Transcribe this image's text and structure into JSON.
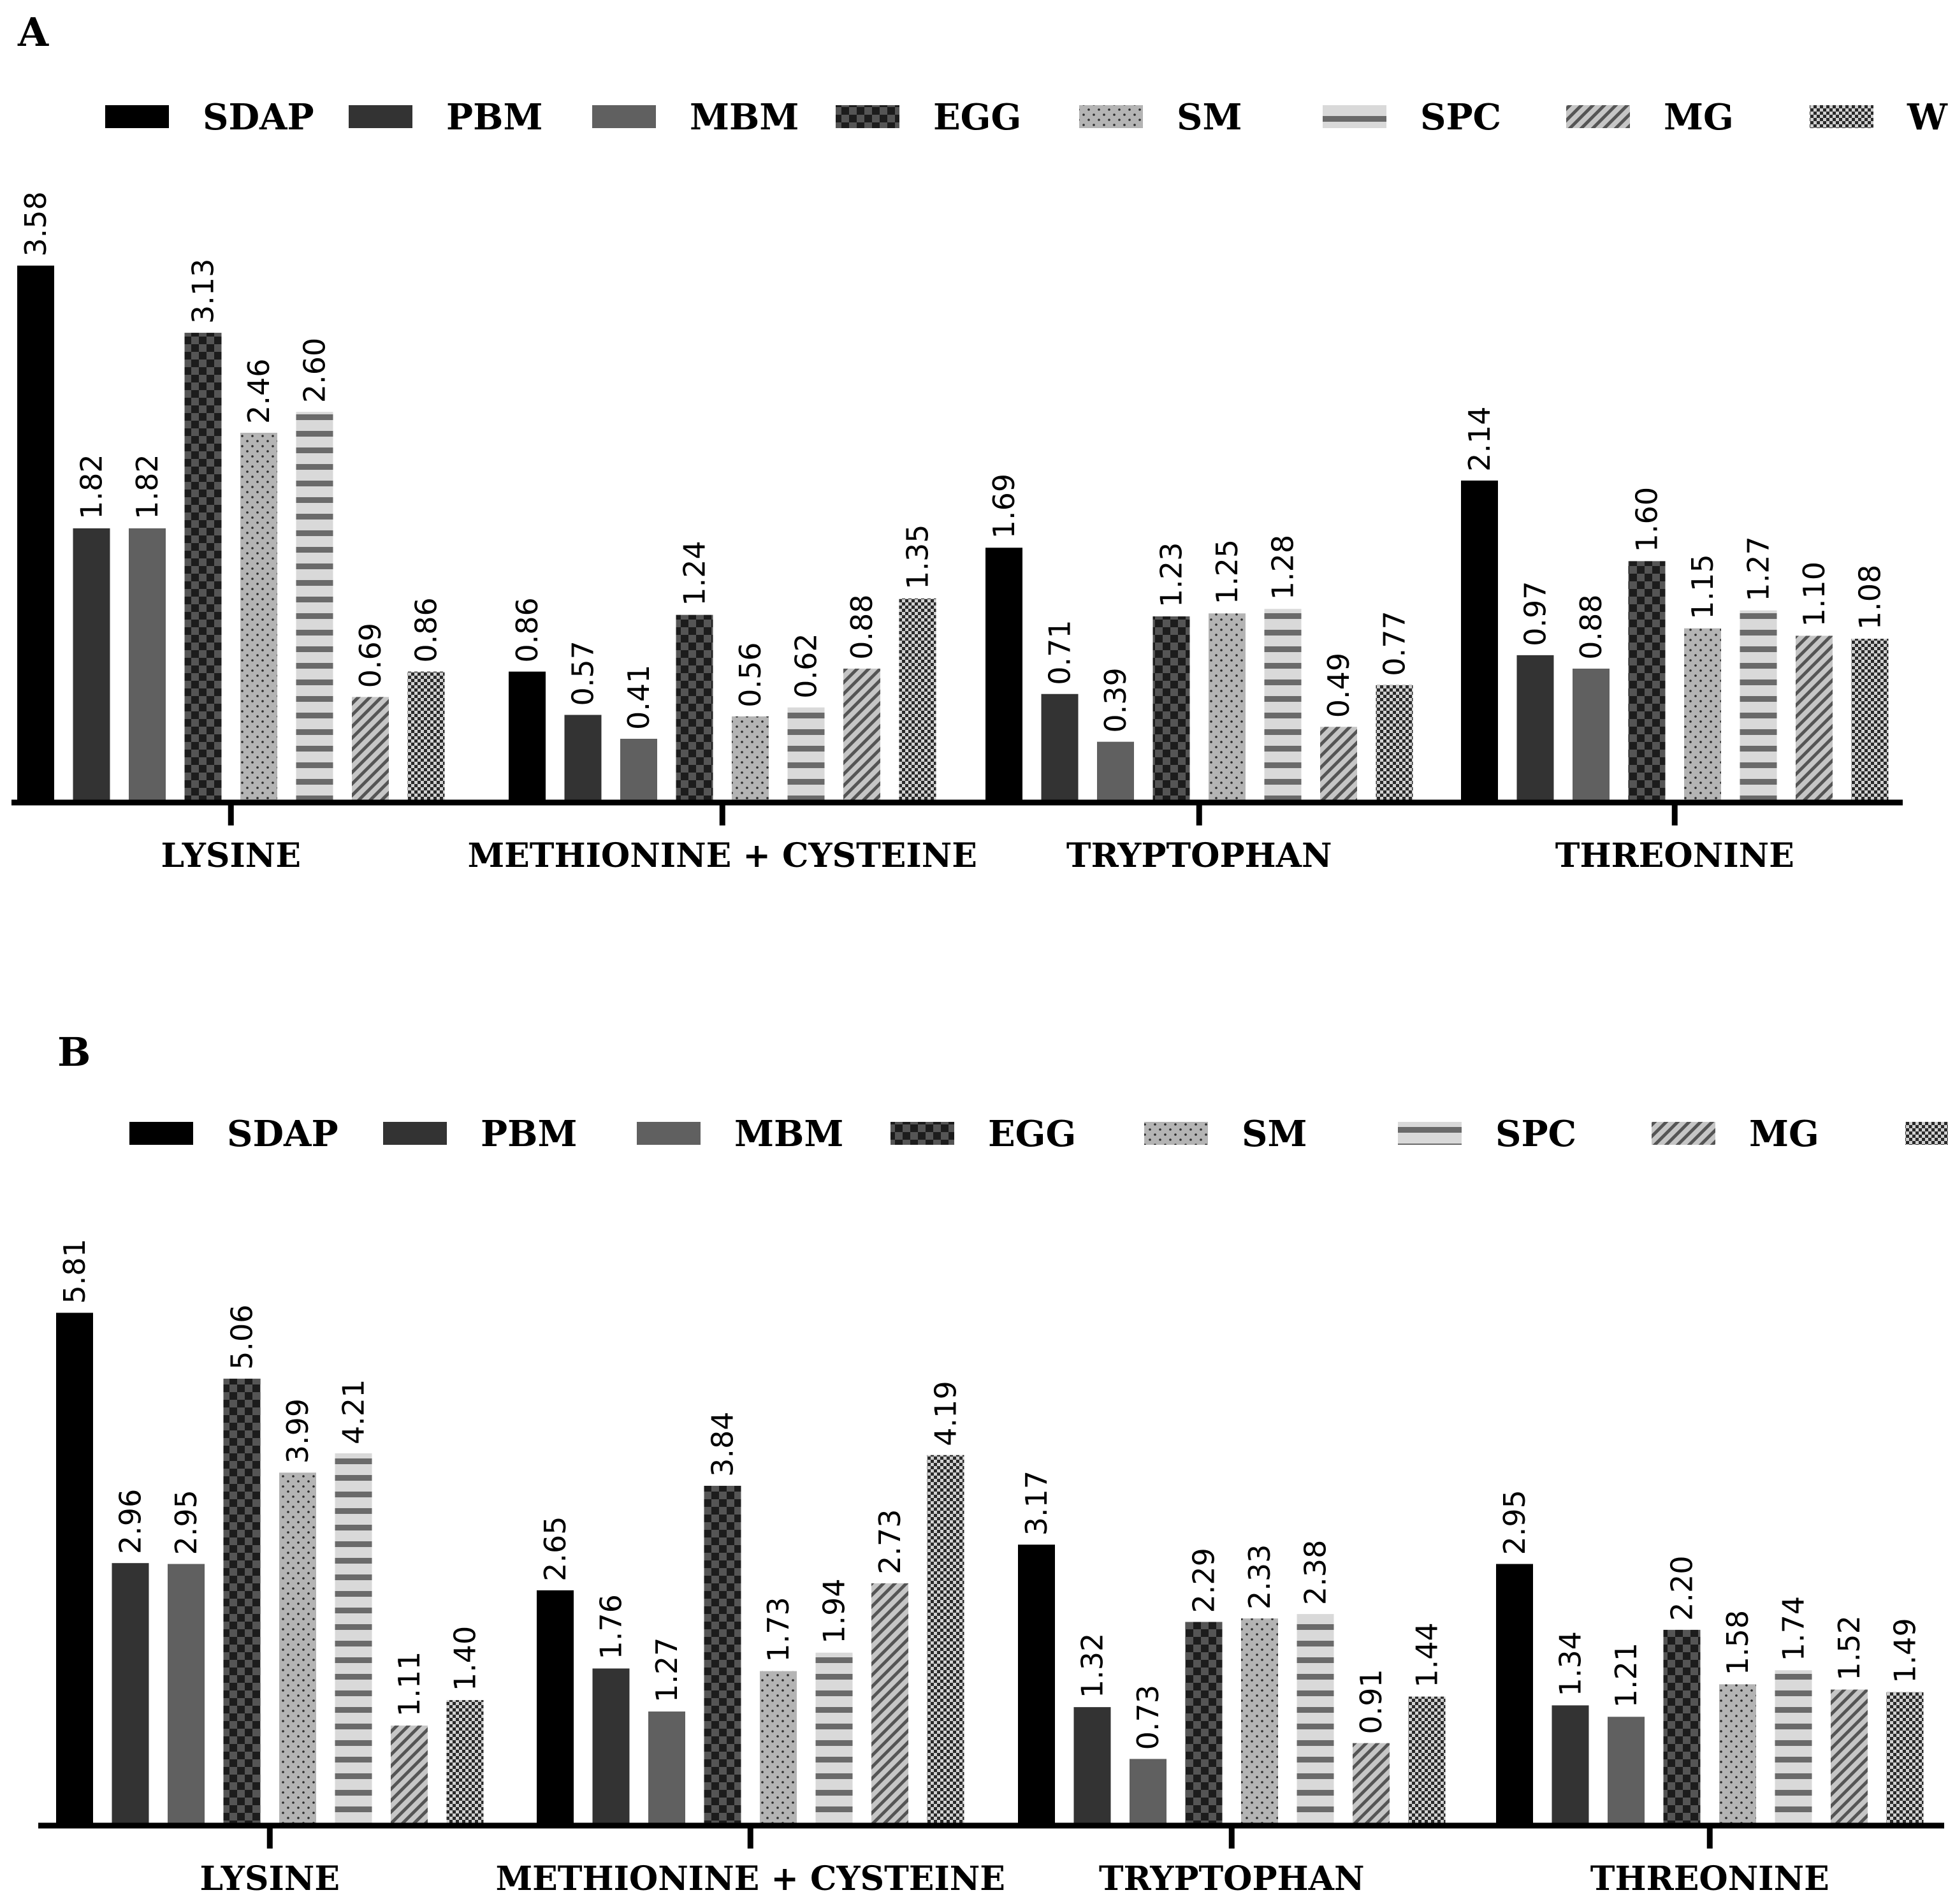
{
  "chart_data": [
    {
      "type": "bar",
      "panel": "A",
      "title": "",
      "xlabel": "",
      "ylabel": "",
      "legend_position": "top",
      "categories": [
        "LYSINE",
        "METHIONINE + CYSTEINE",
        "TRYPTOPHAN",
        "THREONINE"
      ],
      "series": [
        {
          "name": "SDAP",
          "values": [
            3.58,
            0.86,
            1.69,
            2.14
          ]
        },
        {
          "name": "PBM",
          "values": [
            1.82,
            0.57,
            0.71,
            0.97
          ]
        },
        {
          "name": "MBM",
          "values": [
            1.82,
            0.41,
            0.39,
            0.88
          ]
        },
        {
          "name": "EGG",
          "values": [
            3.13,
            1.24,
            1.23,
            1.6
          ]
        },
        {
          "name": "SM",
          "values": [
            2.46,
            0.56,
            1.25,
            1.15
          ]
        },
        {
          "name": "SPC",
          "values": [
            2.6,
            0.62,
            1.28,
            1.27
          ]
        },
        {
          "name": "MG",
          "values": [
            0.69,
            0.88,
            0.49,
            1.1
          ]
        },
        {
          "name": "WG",
          "values": [
            0.86,
            1.35,
            0.77,
            1.08
          ]
        }
      ],
      "value_labels": [
        [
          "3.58",
          "0.86",
          "1.69",
          "2.14"
        ],
        [
          "1.82",
          "0.57",
          "0.71",
          "0.97"
        ],
        [
          "1.82",
          "0.41",
          "0.39",
          "0.88"
        ],
        [
          "3.13",
          "1.24",
          "1.23",
          "1.60"
        ],
        [
          "2.46",
          "0.56",
          "1.25",
          "1.15"
        ],
        [
          "2.60",
          "0.62",
          "1.28",
          "1.27"
        ],
        [
          "0.69",
          "0.88",
          "0.49",
          "1.10"
        ],
        [
          "0.86",
          "1.35",
          "0.77",
          "1.08"
        ]
      ],
      "ylim": [
        0,
        3.6
      ]
    },
    {
      "type": "bar",
      "panel": "B",
      "title": "",
      "xlabel": "",
      "ylabel": "",
      "legend_position": "top",
      "categories": [
        "LYSINE",
        "METHIONINE + CYSTEINE",
        "TRYPTOPHAN",
        "THREONINE"
      ],
      "series": [
        {
          "name": "SDAP",
          "values": [
            5.81,
            2.65,
            3.17,
            2.95
          ]
        },
        {
          "name": "PBM",
          "values": [
            2.96,
            1.76,
            1.32,
            1.34
          ]
        },
        {
          "name": "MBM",
          "values": [
            2.95,
            1.27,
            0.73,
            1.21
          ]
        },
        {
          "name": "EGG",
          "values": [
            5.06,
            3.84,
            2.29,
            2.2
          ]
        },
        {
          "name": "SM",
          "values": [
            3.99,
            1.73,
            2.33,
            1.58
          ]
        },
        {
          "name": "SPC",
          "values": [
            4.21,
            1.94,
            2.38,
            1.74
          ]
        },
        {
          "name": "MG",
          "values": [
            1.11,
            2.73,
            0.91,
            1.52
          ]
        },
        {
          "name": "WG",
          "values": [
            1.4,
            4.19,
            1.44,
            1.49
          ]
        }
      ],
      "value_labels": [
        [
          "5.81",
          "2.65",
          "3.17",
          "2.95"
        ],
        [
          "2.96",
          "1.76",
          "1.32",
          "1.34"
        ],
        [
          "2.95",
          "1.27",
          "0.73",
          "1.21"
        ],
        [
          "5.06",
          "3.84",
          "2.29",
          "2.20"
        ],
        [
          "3.99",
          "1.73",
          "2.33",
          "1.58"
        ],
        [
          "4.21",
          "1.94",
          "2.38",
          "1.74"
        ],
        [
          "1.11",
          "2.73",
          "0.91",
          "1.52"
        ],
        [
          "1.40",
          "4.19",
          "1.44",
          "1.49"
        ]
      ],
      "ylim": [
        0,
        5.85
      ]
    }
  ],
  "series_styles": [
    {
      "name": "SDAP",
      "pattern": "solid-black",
      "color": "#000000"
    },
    {
      "name": "PBM",
      "pattern": "solid-dark",
      "color": "#333333"
    },
    {
      "name": "MBM",
      "pattern": "solid-grey",
      "color": "#606060"
    },
    {
      "name": "EGG",
      "pattern": "checker",
      "color": "#404040"
    },
    {
      "name": "SM",
      "pattern": "dots",
      "color": "#b4b4b4"
    },
    {
      "name": "SPC",
      "pattern": "horizontal-stripes",
      "color": "#d4d4d4"
    },
    {
      "name": "MG",
      "pattern": "diagonal-hatch",
      "color": "#b8b8b8"
    },
    {
      "name": "WG",
      "pattern": "fine-checker",
      "color": "#606060"
    }
  ]
}
